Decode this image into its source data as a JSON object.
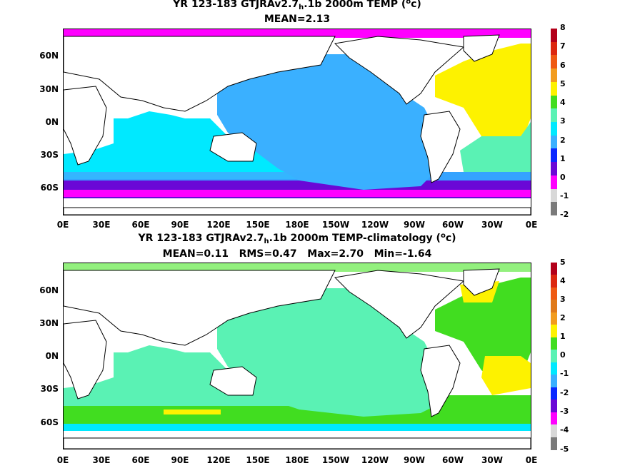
{
  "panels": [
    {
      "title_prefix": "YR 123-183 GTJRAv2.7",
      "title_sub": "h",
      "title_mid": ".1b 2000m TEMP (",
      "title_sup": "o",
      "title_suffix": "c)",
      "stats": "MEAN=2.13",
      "colorbar_labels": [
        "8",
        "7",
        "6",
        "5",
        "4",
        "3",
        "2",
        "1",
        "0",
        "-1",
        "-2"
      ],
      "colorbar_colors": [
        "#b3001a",
        "#dc2810",
        "#ef5a13",
        "#f29c1e",
        "#fdf200",
        "#41dd20",
        "#5af2b4",
        "#00e9ff",
        "#3ab0ff",
        "#0a28ff",
        "#6a08d6",
        "#ff00ff",
        "#d8d8d8",
        "#7a7a7a"
      ],
      "fills": {
        "pacific": "#3ab0ff",
        "indian": "#00e9ff",
        "atlantic": "#fdf200",
        "south_atl": "#5af2b4",
        "southern": "#0a28ff",
        "arctic": "#ff00ff",
        "land": "#ffffff"
      }
    },
    {
      "title_prefix": "YR 123-183 GTJRAv2.7",
      "title_sub": "h",
      "title_mid": ".1b 2000m TEMP-climatology (",
      "title_sup": "o",
      "title_suffix": "c)",
      "stats": "MEAN=0.11   RMS=0.47   Max=2.70   Min=-1.64",
      "colorbar_labels": [
        "5",
        "4",
        "3",
        "2",
        "1",
        "0",
        "-1",
        "-2",
        "-3",
        "-4",
        "-5"
      ],
      "colorbar_colors": [
        "#b3001a",
        "#dc2810",
        "#ef5a13",
        "#e07a1a",
        "#f29c1e",
        "#fdf200",
        "#41dd20",
        "#5af2b4",
        "#00e9ff",
        "#3ab0ff",
        "#0a28ff",
        "#6a08d6",
        "#ff00ff",
        "#d8d8d8",
        "#7a7a7a"
      ],
      "fills": {
        "pacific": "#5af2b4",
        "indian": "#5af2b4",
        "atlantic": "#41dd20",
        "south_atl": "#fdf200",
        "southern": "#41dd20",
        "arctic": "#93f07e",
        "land": "#ffffff"
      }
    }
  ],
  "lat_labels": [
    "60N",
    "30N",
    "0N",
    "30S",
    "60S"
  ],
  "lon_labels": [
    "0E",
    "30E",
    "60E",
    "90E",
    "120E",
    "150E",
    "180E",
    "150W",
    "120W",
    "90W",
    "60W",
    "30W",
    "0E"
  ]
}
